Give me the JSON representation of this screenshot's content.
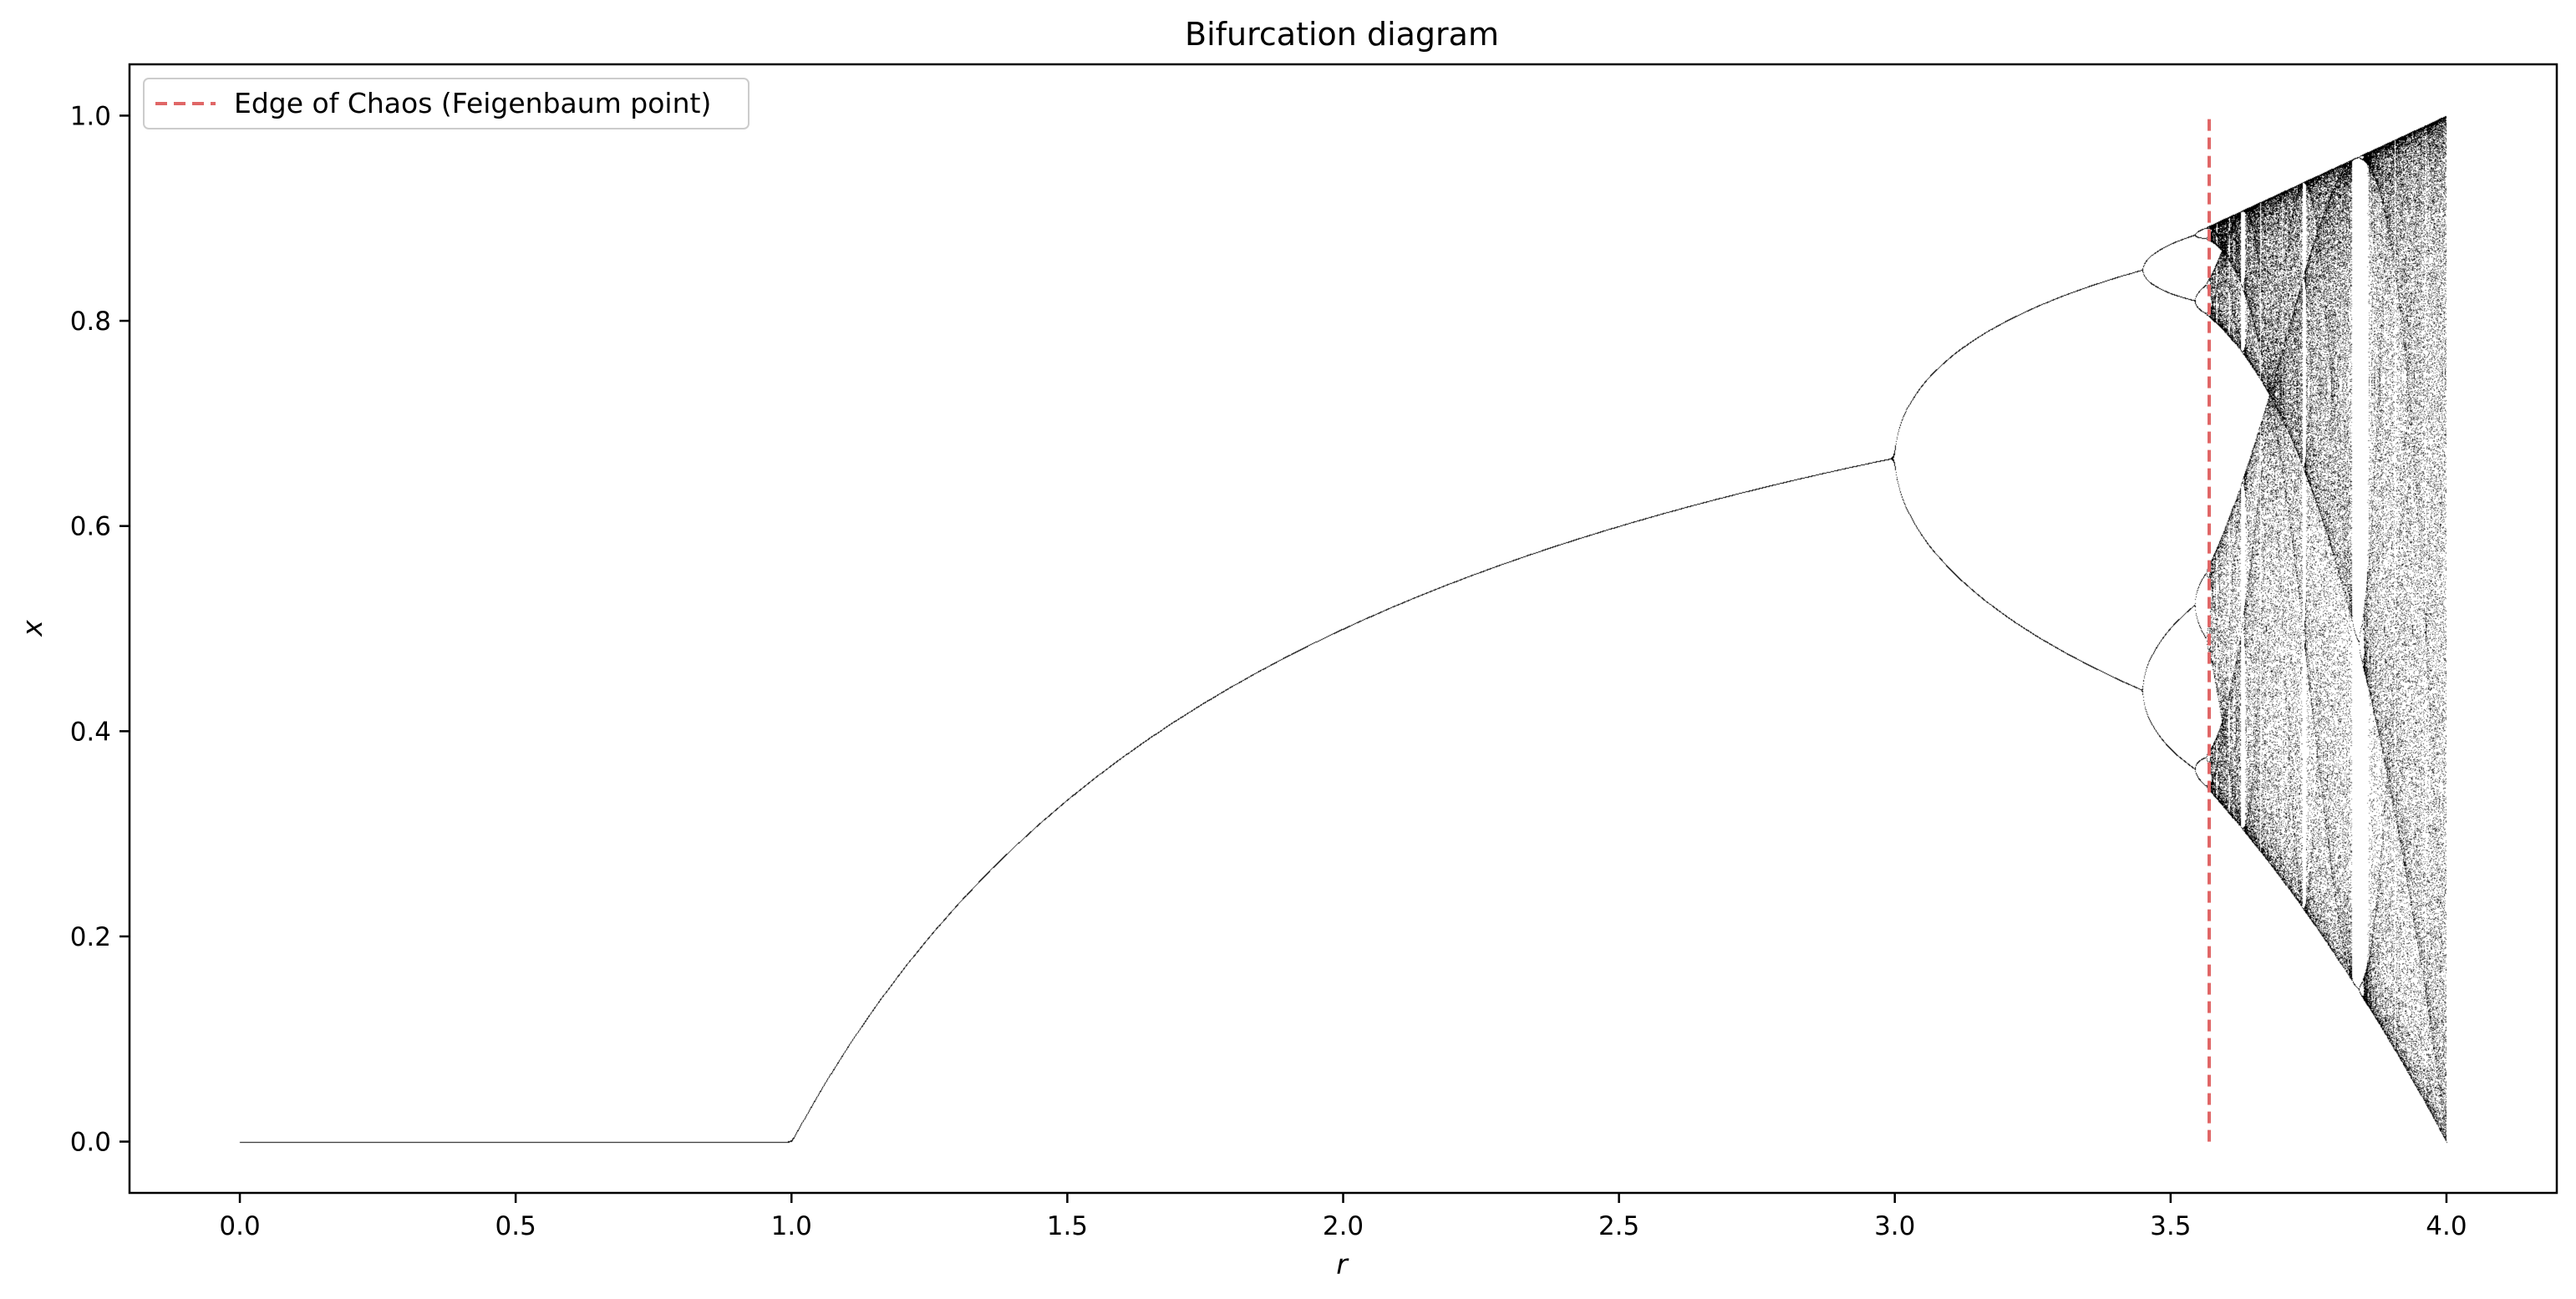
{
  "chart_data": {
    "type": "scatter",
    "title": "Bifurcation diagram",
    "xlabel": "r",
    "ylabel": "x",
    "xlim": [
      -0.2,
      4.2
    ],
    "ylim": [
      -0.05,
      1.05
    ],
    "x_ticks": [
      0.0,
      0.5,
      1.0,
      1.5,
      2.0,
      2.5,
      3.0,
      3.5,
      4.0
    ],
    "x_tick_labels": [
      "0.0",
      "0.5",
      "1.0",
      "1.5",
      "2.0",
      "2.5",
      "3.0",
      "3.5",
      "4.0"
    ],
    "y_ticks": [
      0.0,
      0.2,
      0.4,
      0.6,
      0.8,
      1.0
    ],
    "y_tick_labels": [
      "0.0",
      "0.2",
      "0.4",
      "0.6",
      "0.8",
      "1.0"
    ],
    "grid": false,
    "series": [
      {
        "kind": "logistic-map-attractor",
        "map": "x_{n+1} = r * x_n * (1 - x_n)",
        "r_range": [
          0.0,
          4.0
        ],
        "color": "#000000"
      },
      {
        "name": "Edge of Chaos (Feigenbaum point)",
        "kind": "vertical-line",
        "x": 3.5699,
        "y_range": [
          0.0,
          1.0
        ],
        "color": "#e06666",
        "style": "dashed"
      }
    ],
    "legend": {
      "placement": "upper-left",
      "entries": [
        "Edge of Chaos (Feigenbaum point)"
      ]
    }
  }
}
